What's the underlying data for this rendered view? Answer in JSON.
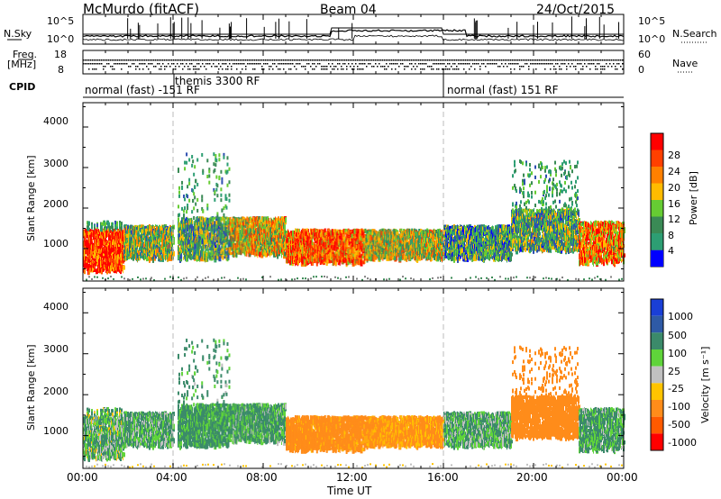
{
  "header": {
    "station": "McMurdo (fitACF)",
    "beam": "Beam 04",
    "date": "24/Oct/2015"
  },
  "noise_panel": {
    "left_label": "N.Sky",
    "right_label": "N.Search",
    "left_ticks": [
      "10^5",
      "10^0"
    ],
    "right_ticks": [
      "10^5",
      "10^0"
    ]
  },
  "freq_panel": {
    "left_label_1": "Freq.",
    "left_label_2": "[MHz]",
    "right_label": "Nave",
    "left_ticks": [
      "18",
      "8"
    ],
    "right_ticks": [
      "60",
      "0"
    ]
  },
  "cpid": {
    "label": "CPID",
    "segments": [
      {
        "label": "normal (fast) -151 RF",
        "start_hr": 0,
        "end_hr": 4
      },
      {
        "label": "themis 3300 RF",
        "start_hr": 4,
        "end_hr": 16
      },
      {
        "label": "normal (fast) 151 RF",
        "start_hr": 16,
        "end_hr": 24
      }
    ]
  },
  "power_panel": {
    "ylabel": "Slant Range [km]",
    "yticks": [
      "4000",
      "3000",
      "2000",
      "1000"
    ],
    "colorbar_label": "Power [dB]",
    "colorbar_ticks": [
      "28",
      "24",
      "20",
      "16",
      "12",
      "8",
      "4"
    ],
    "colors": [
      "#0000ff",
      "#2e4fb0",
      "#2d9e73",
      "#3a8a55",
      "#66cc33",
      "#ffbb00",
      "#ff8000",
      "#ff4000",
      "#ff0000"
    ]
  },
  "velocity_panel": {
    "ylabel": "Slant Range [km]",
    "yticks": [
      "4000",
      "3000",
      "2000",
      "1000"
    ],
    "colorbar_label": "Velocity [m s⁻¹]",
    "colorbar_ticks": [
      "1000",
      "500",
      "100",
      "25",
      "-25",
      "-100",
      "-500",
      "-1000"
    ],
    "colors": [
      "#1a3fd6",
      "#2e5aa6",
      "#3b8a6a",
      "#5fd43a",
      "#c0c0c0",
      "#ffc400",
      "#ff8c1a",
      "#ff5a00",
      "#ff0000"
    ]
  },
  "xaxis": {
    "label": "Time UT",
    "ticks": [
      "00:00",
      "04:00",
      "08:00",
      "12:00",
      "16:00",
      "20:00",
      "00:00"
    ]
  },
  "chart_data": {
    "type": "heatmap",
    "title": "McMurdo (fitACF) Beam 04 24/Oct/2015",
    "xlabel": "Time UT",
    "ylabel": "Slant Range [km]",
    "xlim_hours": [
      0,
      24
    ],
    "ylim_km": [
      200,
      4600
    ],
    "power_scale_db": [
      0,
      30
    ],
    "velocity_scale_ms": [
      -1000,
      1000
    ],
    "grid": false,
    "scatter_regions": [
      {
        "t_start": 0.0,
        "t_end": 1.8,
        "r_low": 500,
        "r_high": 1700,
        "power_db": 26,
        "velocity": 80
      },
      {
        "t_start": 1.8,
        "t_end": 4.0,
        "r_low": 800,
        "r_high": 1600,
        "power_db": 14,
        "velocity": 100
      },
      {
        "t_start": 4.2,
        "t_end": 6.5,
        "r_low": 800,
        "r_high": 3400,
        "power_db": 12,
        "velocity": 150
      },
      {
        "t_start": 6.5,
        "t_end": 9.0,
        "r_low": 900,
        "r_high": 1800,
        "power_db": 18,
        "velocity": 120
      },
      {
        "t_start": 9.0,
        "t_end": 12.5,
        "r_low": 700,
        "r_high": 1500,
        "power_db": 24,
        "velocity": -200
      },
      {
        "t_start": 12.5,
        "t_end": 16.0,
        "r_low": 800,
        "r_high": 1500,
        "power_db": 16,
        "velocity": -150
      },
      {
        "t_start": 16.0,
        "t_end": 19.0,
        "r_low": 800,
        "r_high": 1600,
        "power_db": 10,
        "velocity": 100
      },
      {
        "t_start": 19.0,
        "t_end": 22.0,
        "r_low": 1000,
        "r_high": 3200,
        "power_db": 12,
        "velocity": -250
      },
      {
        "t_start": 22.0,
        "t_end": 24.0,
        "r_low": 700,
        "r_high": 1700,
        "power_db": 22,
        "velocity": 120
      }
    ]
  }
}
